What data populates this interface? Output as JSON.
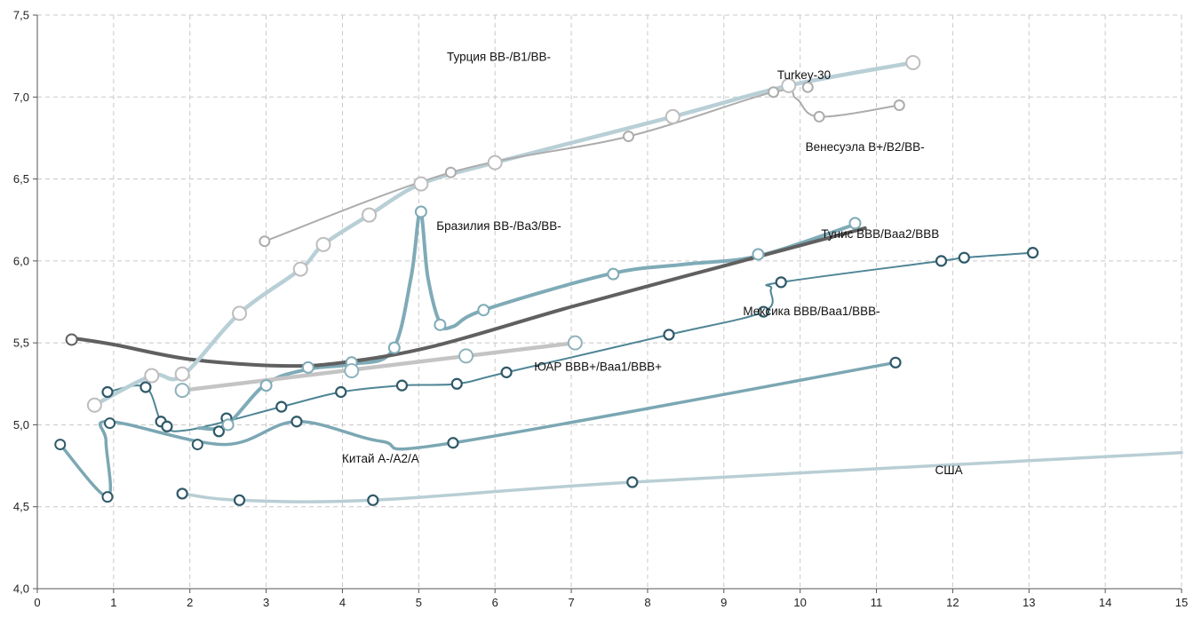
{
  "chart_data": {
    "type": "line",
    "title": "",
    "xlabel": "",
    "ylabel": "",
    "xlim": [
      0,
      15
    ],
    "ylim": [
      4.0,
      7.5
    ],
    "x_ticks": [
      0,
      1,
      2,
      3,
      4,
      5,
      6,
      7,
      8,
      9,
      10,
      11,
      12,
      13,
      14,
      15
    ],
    "x_tick_labels": [
      "0",
      "1",
      "2",
      "3",
      "4",
      "5",
      "6",
      "7",
      "8",
      "9",
      "10",
      "11",
      "12",
      "13",
      "14",
      "15"
    ],
    "y_ticks": [
      4.0,
      4.5,
      5.0,
      5.5,
      6.0,
      6.5,
      7.0,
      7.5
    ],
    "y_tick_labels": [
      "4,0",
      "4,5",
      "5,0",
      "5,5",
      "6,0",
      "6,5",
      "7,0",
      "7,5"
    ],
    "grid": true,
    "legend": "none",
    "series": [
      {
        "name": "США",
        "color": "#b8ced4",
        "width": 3.5,
        "points": [
          [
            1.9,
            4.58
          ],
          [
            2.65,
            4.54
          ],
          [
            4.4,
            4.54
          ],
          [
            7.8,
            4.65
          ],
          [
            15.0,
            4.83
          ]
        ],
        "markers": [
          [
            1.9,
            4.58
          ],
          [
            2.65,
            4.54
          ],
          [
            4.4,
            4.54
          ],
          [
            7.8,
            4.65
          ]
        ],
        "marker_color": "#2f5968",
        "marker_radius": 5.5
      },
      {
        "name": "Китай A-/A2/A",
        "color": "#7ba7b3",
        "width": 3.5,
        "points": [
          [
            0.3,
            4.88
          ],
          [
            0.92,
            4.56
          ],
          [
            0.9,
            4.9
          ],
          [
            0.95,
            5.02
          ],
          [
            2.45,
            4.88
          ],
          [
            3.4,
            5.02
          ],
          [
            4.5,
            4.9
          ],
          [
            5.45,
            4.89
          ],
          [
            11.25,
            5.38
          ]
        ],
        "markers": [
          [
            1.62,
            5.02
          ],
          [
            2.38,
            4.96
          ],
          [
            3.4,
            5.02
          ],
          [
            5.45,
            4.89
          ],
          [
            11.25,
            5.38
          ]
        ],
        "marker_color": "#2f5968",
        "marker_radius": 5.5,
        "hollow_markers": [
          [
            0.3,
            4.88
          ],
          [
            0.92,
            4.56
          ],
          [
            0.95,
            5.01
          ],
          [
            2.1,
            4.88
          ]
        ]
      },
      {
        "name": "Мексика BBB/Baa1/BBB-",
        "color": "#4f8595",
        "width": 2,
        "points": [
          [
            0.92,
            5.2
          ],
          [
            1.42,
            5.23
          ],
          [
            1.65,
            5.0
          ],
          [
            2.0,
            4.97
          ],
          [
            3.2,
            5.11
          ],
          [
            3.98,
            5.2
          ],
          [
            4.78,
            5.24
          ],
          [
            5.5,
            5.25
          ],
          [
            6.15,
            5.32
          ],
          [
            8.28,
            5.55
          ],
          [
            9.52,
            5.69
          ],
          [
            9.62,
            5.83
          ],
          [
            9.75,
            5.87
          ],
          [
            11.85,
            6.0
          ],
          [
            12.15,
            6.02
          ],
          [
            13.05,
            6.05
          ]
        ],
        "markers": [
          [
            0.92,
            5.2
          ],
          [
            1.42,
            5.23
          ],
          [
            1.7,
            4.99
          ],
          [
            2.48,
            5.04
          ],
          [
            3.2,
            5.11
          ],
          [
            3.98,
            5.2
          ],
          [
            4.78,
            5.24
          ],
          [
            5.5,
            5.25
          ],
          [
            6.15,
            5.32
          ],
          [
            8.28,
            5.55
          ],
          [
            9.52,
            5.69
          ],
          [
            9.75,
            5.87
          ],
          [
            11.85,
            6.0
          ],
          [
            12.15,
            6.02
          ],
          [
            13.05,
            6.05
          ]
        ],
        "marker_color": "#2f5968",
        "marker_radius": 5.5
      },
      {
        "name": "Бразилия BB-/Ba3/BB-",
        "color": "#7fabb7",
        "width": 4,
        "points": [
          [
            2.12,
            4.98
          ],
          [
            2.48,
            5.0
          ],
          [
            3.0,
            5.25
          ],
          [
            3.55,
            5.34
          ],
          [
            4.12,
            5.37
          ],
          [
            4.65,
            5.45
          ],
          [
            4.9,
            5.9
          ],
          [
            5.02,
            6.3
          ],
          [
            5.12,
            5.9
          ],
          [
            5.28,
            5.62
          ],
          [
            5.45,
            5.6
          ],
          [
            5.85,
            5.7
          ],
          [
            7.5,
            5.92
          ],
          [
            8.5,
            5.98
          ],
          [
            9.45,
            6.03
          ],
          [
            10.7,
            6.22
          ]
        ],
        "markers": [],
        "marker_color": "#7fabb7",
        "marker_radius": 6,
        "hollow_markers": [
          [
            2.5,
            5.0
          ],
          [
            3.0,
            5.24
          ],
          [
            3.55,
            5.35
          ],
          [
            4.12,
            5.38
          ],
          [
            4.68,
            5.47
          ],
          [
            5.03,
            6.3
          ],
          [
            5.28,
            5.61
          ],
          [
            5.85,
            5.7
          ],
          [
            7.55,
            5.92
          ],
          [
            9.45,
            6.04
          ],
          [
            10.72,
            6.23
          ]
        ]
      },
      {
        "name": "Тунис BBB/Baa2/BBB",
        "color": "#606060",
        "width": 4,
        "points": [
          [
            0.45,
            5.53
          ],
          [
            1.0,
            5.49
          ],
          [
            2.0,
            5.4
          ],
          [
            3.2,
            5.36
          ],
          [
            4.0,
            5.38
          ],
          [
            5.2,
            5.48
          ],
          [
            7.0,
            5.72
          ],
          [
            9.0,
            5.97
          ],
          [
            10.85,
            6.2
          ]
        ],
        "markers": [],
        "marker_color": "#606060",
        "marker_radius": 6,
        "hollow_markers": [
          [
            0.45,
            5.52
          ]
        ]
      },
      {
        "name": "ЮАР BBB+/Baa1/BBB+",
        "color": "#c4c4c4",
        "width": 4.5,
        "points": [
          [
            1.9,
            5.21
          ],
          [
            7.05,
            5.5
          ]
        ],
        "markers": [],
        "marker_color": "#8fb3bd",
        "marker_radius": 7.5,
        "hollow_markers": [
          [
            1.9,
            5.21
          ],
          [
            4.12,
            5.33
          ],
          [
            5.62,
            5.42
          ],
          [
            7.05,
            5.5
          ]
        ]
      },
      {
        "name": "Турция BB-/B1/BB-",
        "color": "#b8cfd6",
        "width": 4.5,
        "points": [
          [
            0.75,
            5.12
          ],
          [
            1.5,
            5.3
          ],
          [
            1.9,
            5.3
          ],
          [
            2.65,
            5.68
          ],
          [
            3.45,
            5.95
          ],
          [
            3.75,
            6.1
          ],
          [
            4.35,
            6.28
          ],
          [
            5.03,
            6.47
          ],
          [
            6.0,
            6.6
          ],
          [
            8.33,
            6.88
          ],
          [
            9.85,
            7.07
          ],
          [
            11.48,
            7.21
          ]
        ],
        "markers": [],
        "marker_color": "#bdbdbd",
        "marker_radius": 7.5,
        "hollow_markers": [
          [
            0.75,
            5.12
          ],
          [
            1.5,
            5.3
          ],
          [
            1.9,
            5.31
          ],
          [
            2.65,
            5.68
          ],
          [
            3.45,
            5.95
          ],
          [
            3.75,
            6.1
          ],
          [
            4.35,
            6.28
          ],
          [
            5.03,
            6.47
          ],
          [
            6.0,
            6.6
          ],
          [
            8.33,
            6.88
          ],
          [
            9.85,
            7.07
          ],
          [
            11.48,
            7.21
          ]
        ]
      },
      {
        "name": "Венесуэла B+/B2/BB-",
        "color": "#acacac",
        "width": 2,
        "points": [
          [
            2.98,
            6.12
          ],
          [
            5.42,
            6.54
          ],
          [
            7.75,
            6.76
          ],
          [
            9.65,
            7.03
          ],
          [
            9.95,
            6.99
          ],
          [
            10.25,
            6.88
          ],
          [
            11.3,
            6.95
          ]
        ],
        "markers": [],
        "marker_color": "#acacac",
        "marker_radius": 5.5,
        "hollow_markers": [
          [
            2.98,
            6.12
          ],
          [
            5.42,
            6.54
          ],
          [
            7.75,
            6.76
          ],
          [
            9.65,
            7.03
          ],
          [
            10.1,
            7.06
          ],
          [
            10.25,
            6.88
          ],
          [
            11.3,
            6.95
          ]
        ]
      }
    ],
    "annotations": [
      {
        "text": "Турция BB-/B1/BB-",
        "x": 6.05,
        "y": 7.22
      },
      {
        "text": "Turkey-30",
        "x": 10.05,
        "y": 7.11
      },
      {
        "text": "Венесуэла B+/B2/BB-",
        "x": 10.85,
        "y": 6.67
      },
      {
        "text": "Бразилия BB-/Ba3/BB-",
        "x": 6.05,
        "y": 6.19
      },
      {
        "text": "Тунис BBB/Baa2/BBB",
        "x": 11.05,
        "y": 6.14
      },
      {
        "text": "Мексика BBB/Baa1/BBB-",
        "x": 10.15,
        "y": 5.67
      },
      {
        "text": "ЮАР BBB+/Baa1/BBB+",
        "x": 7.35,
        "y": 5.33
      },
      {
        "text": "Китай A-/A2/A",
        "x": 4.5,
        "y": 4.77
      },
      {
        "text": "США",
        "x": 11.95,
        "y": 4.7
      }
    ]
  }
}
